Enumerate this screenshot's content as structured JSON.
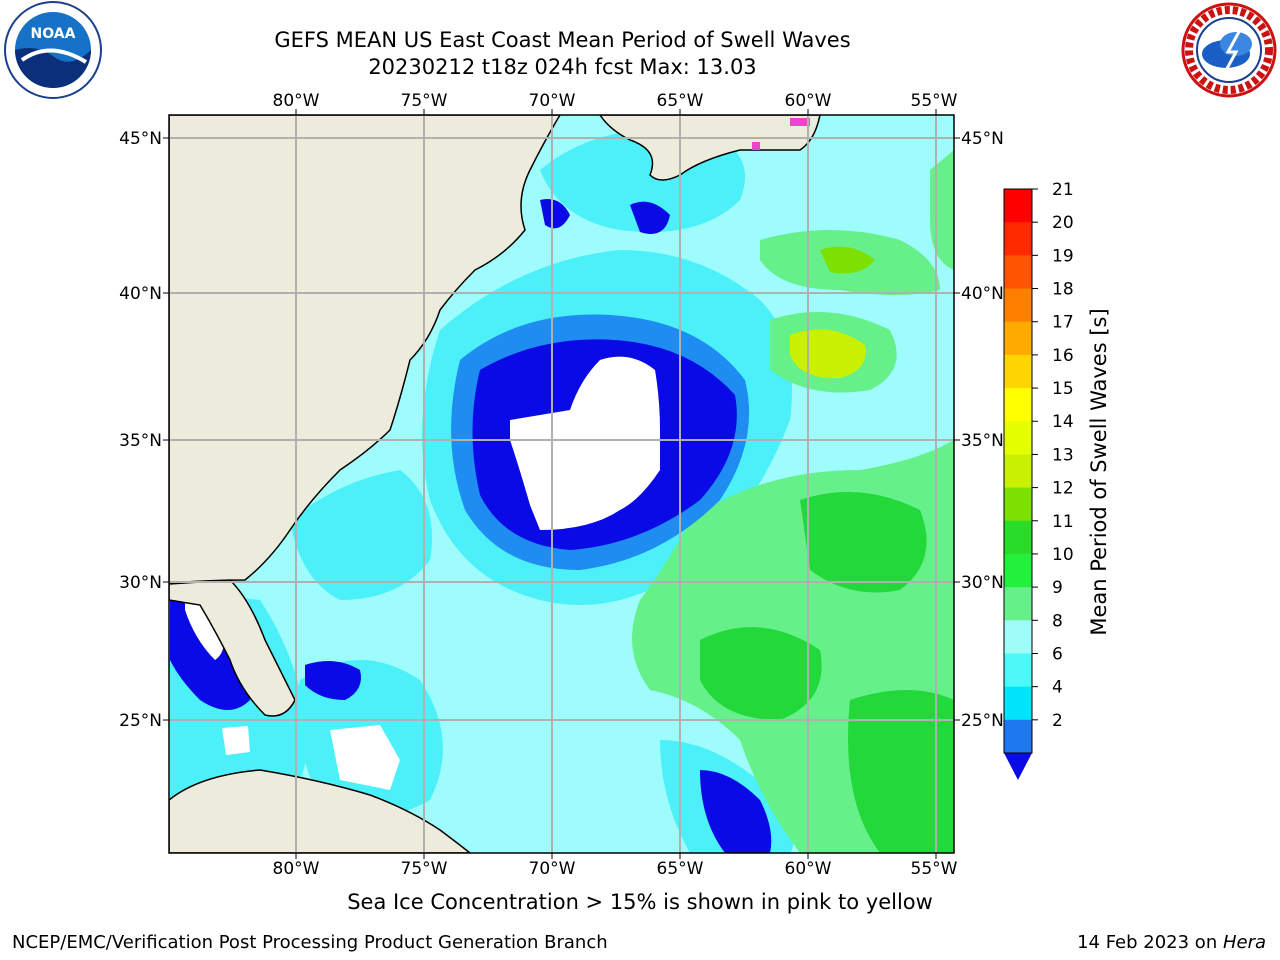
{
  "header": {
    "title_line1": "GEFS MEAN US East Coast Mean Period of Swell Waves",
    "title_line2": "20230212 t18z 024h fcst   Max: 13.03"
  },
  "logos": {
    "left_text": "NOAA",
    "right_ring_text": "NATIONAL WEATHER SERVICE"
  },
  "map": {
    "lon_labels": [
      "80°W",
      "75°W",
      "70°W",
      "65°W",
      "60°W",
      "55°W"
    ],
    "lat_labels": [
      "45°N",
      "40°N",
      "35°N",
      "30°N",
      "25°N"
    ],
    "colors": {
      "land": "#ecebdc",
      "lt_cyan": "#9ffcfc",
      "cyan": "#4cf0f8",
      "mid_cyan": "#22dcf8",
      "blue": "#1e8cf0",
      "dark_blue": "#0a0ae6",
      "lt_green": "#66f08a",
      "green": "#22d83a",
      "yellow_green": "#c8f000",
      "sea_ice": "#ee44cc"
    }
  },
  "colorbar": {
    "label": "Mean Period of Swell Waves [s]",
    "ticks": [
      "21",
      "20",
      "19",
      "18",
      "17",
      "16",
      "15",
      "14",
      "13",
      "12",
      "11",
      "10",
      "9",
      "8",
      "6",
      "4",
      "2"
    ],
    "segment_colors": [
      "#ff0000",
      "#ff2a00",
      "#ff5500",
      "#ff7f00",
      "#ffaa00",
      "#ffd400",
      "#ffff00",
      "#e6ff00",
      "#c8f000",
      "#7ce000",
      "#2adc2a",
      "#22f03a",
      "#66f08a",
      "#a0fcf8",
      "#4cf8f8",
      "#00e4fc",
      "#1e78f0"
    ],
    "under_color": "#0a0ae6"
  },
  "footnote": "Sea Ice Concentration > 15% is shown in pink to yellow",
  "footer": {
    "left": "NCEP/EMC/Verification Post Processing Product Generation Branch",
    "right_date": "14 Feb 2023 on ",
    "right_host": "Hera"
  }
}
